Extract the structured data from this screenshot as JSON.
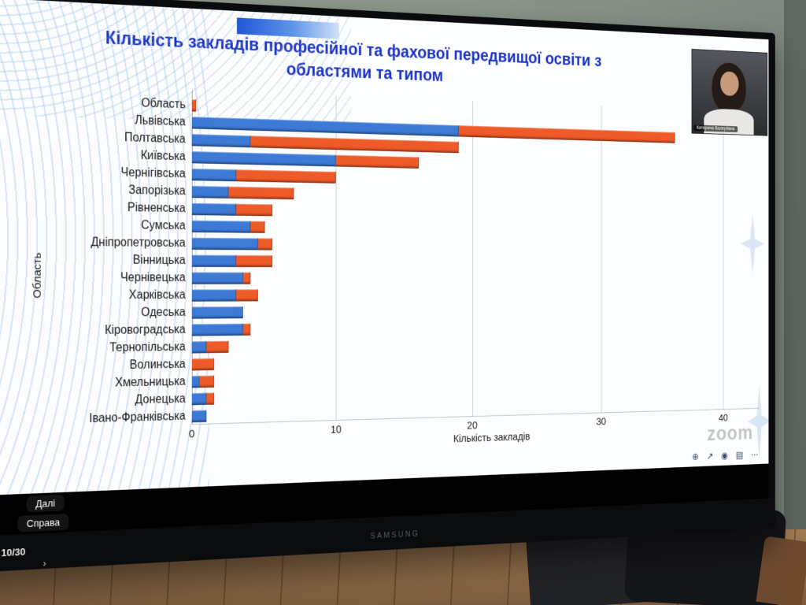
{
  "scene": {
    "tv_brand": "SAMSUNG",
    "page_indicator": "10/30",
    "captions": [
      "Далі",
      "Справа"
    ],
    "prompt_glyph": "›"
  },
  "zoom": {
    "watermark": "zoom",
    "participant_name": "Катерина Валеріївна",
    "toolbar": [
      {
        "name": "zoom-in",
        "glyph": "⊕"
      },
      {
        "name": "share",
        "glyph": "↗"
      },
      {
        "name": "participants",
        "glyph": "◉"
      },
      {
        "name": "apps",
        "glyph": "▤"
      },
      {
        "name": "more",
        "glyph": "⋯"
      }
    ]
  },
  "slide": {
    "title_line1": "Кількість закладів професійної та фахової передвищої освіти з",
    "title_line2": "областями та типом"
  },
  "chart_data": {
    "type": "bar",
    "orientation": "horizontal",
    "stacked": true,
    "title": "Кількість закладів професійної та фахової передвищої освіти за областями та типом",
    "xlabel": "Кількість закладів",
    "ylabel": "Область",
    "xlim": [
      0,
      43
    ],
    "xticks": [
      0,
      10,
      20,
      30,
      40
    ],
    "grid": true,
    "legend": "none",
    "categories": [
      "Область",
      "Львівська",
      "Полтавська",
      "Київська",
      "Чернігівська",
      "Запорізька",
      "Рівненська",
      "Сумська",
      "Дніпропетровська",
      "Вінницька",
      "Чернівецька",
      "Харківська",
      "Одеська",
      "Кіровоградська",
      "Тернопільська",
      "Волинська",
      "Хмельницька",
      "Донецька",
      "Івано-Франківська"
    ],
    "series": [
      {
        "name": "type-blue",
        "color": "#3c7ad6",
        "values": [
          0,
          19,
          4,
          10,
          3,
          2.5,
          3,
          4,
          4.5,
          3,
          3.5,
          3,
          3.5,
          3.5,
          1,
          0,
          0.5,
          1,
          1
        ]
      },
      {
        "name": "type-orange",
        "color": "#ee5a28",
        "values": [
          0.3,
          17,
          15,
          6,
          7,
          4.5,
          2.5,
          1,
          1,
          2.5,
          0.5,
          1.5,
          0,
          0.5,
          1.5,
          1.5,
          1,
          0.5,
          0
        ]
      }
    ]
  }
}
